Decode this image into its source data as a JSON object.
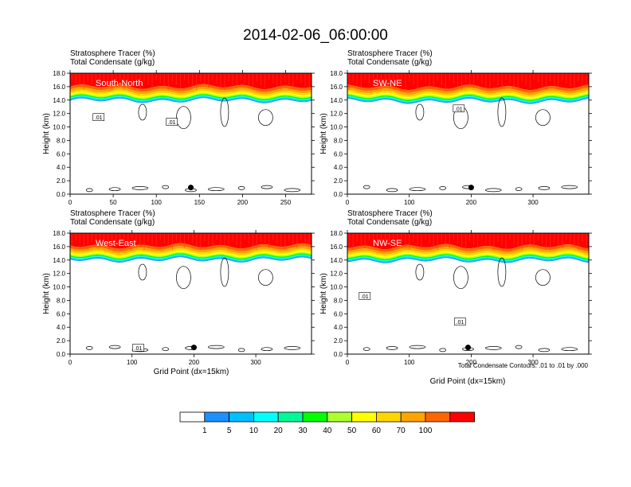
{
  "figure": {
    "title": "2014-02-06_06:00:00",
    "header_line1": "Stratosphere Tracer   (%)",
    "header_line2": "Total Condensate   (g/kg)",
    "ylabel": "Height (km)",
    "xlabel": "Grid Point (dx=15km)",
    "contour_note": "Total Condensate Contours: .01 to .01 by .000",
    "contour_label": ".01"
  },
  "colorbar": {
    "levels": [
      "1",
      "5",
      "10",
      "20",
      "30",
      "40",
      "50",
      "60",
      "70",
      "100"
    ],
    "colors": [
      "#ffffff",
      "#1e90ff",
      "#00bfff",
      "#00ffff",
      "#00fa9a",
      "#00ff00",
      "#adff2f",
      "#ffff00",
      "#ffd700",
      "#ffa500",
      "#ff6600",
      "#ff0000"
    ]
  },
  "chart_data": [
    {
      "type": "heatmap",
      "name": "South-North",
      "xlim": [
        0,
        280
      ],
      "ylim": [
        0,
        18
      ],
      "xticks": [
        "0",
        "50",
        "100",
        "150",
        "200",
        "250"
      ],
      "xtick_values": [
        0,
        50,
        100,
        150,
        200,
        250
      ],
      "yticks": [
        "0.0",
        "2.0",
        "4.0",
        "6.0",
        "8.0",
        "10.0",
        "12.0",
        "14.0",
        "16.0",
        "18.0"
      ],
      "tropopause_km": 15.1,
      "marker": {
        "x": 140,
        "y": 1.0
      },
      "contour_labels": [
        {
          "x": 33,
          "y": 11.4
        },
        {
          "x": 118,
          "y": 10.7
        }
      ]
    },
    {
      "type": "heatmap",
      "name": "SW-NE",
      "xlim": [
        0,
        390
      ],
      "ylim": [
        0,
        18
      ],
      "xticks": [
        "0",
        "100",
        "200",
        "300"
      ],
      "xtick_values": [
        0,
        100,
        200,
        300
      ],
      "yticks": [
        "0.0",
        "2.0",
        "4.0",
        "6.0",
        "8.0",
        "10.0",
        "12.0",
        "14.0",
        "16.0",
        "18.0"
      ],
      "tropopause_km": 15.0,
      "marker": {
        "x": 200,
        "y": 1.0
      },
      "contour_labels": [
        {
          "x": 180,
          "y": 12.7
        }
      ]
    },
    {
      "type": "heatmap",
      "name": "West-East",
      "xlim": [
        0,
        390
      ],
      "ylim": [
        0,
        18
      ],
      "xticks": [
        "0",
        "100",
        "200",
        "300"
      ],
      "xtick_values": [
        0,
        100,
        200,
        300
      ],
      "yticks": [
        "0.0",
        "2.0",
        "4.0",
        "6.0",
        "8.0",
        "10.0",
        "12.0",
        "14.0",
        "16.0",
        "18.0"
      ],
      "tropopause_km": 15.2,
      "marker": {
        "x": 200,
        "y": 1.0
      },
      "contour_labels": [
        {
          "x": 110,
          "y": 0.9
        }
      ]
    },
    {
      "type": "heatmap",
      "name": "NW-SE",
      "xlim": [
        0,
        390
      ],
      "ylim": [
        0,
        18
      ],
      "xticks": [
        "0",
        "100",
        "200",
        "300"
      ],
      "xtick_values": [
        0,
        100,
        200,
        300
      ],
      "yticks": [
        "0.0",
        "2.0",
        "4.0",
        "6.0",
        "8.0",
        "10.0",
        "12.0",
        "14.0",
        "16.0",
        "18.0"
      ],
      "tropopause_km": 15.1,
      "marker": {
        "x": 195,
        "y": 1.0
      },
      "contour_labels": [
        {
          "x": 28,
          "y": 8.6
        },
        {
          "x": 182,
          "y": 4.8
        }
      ]
    }
  ]
}
